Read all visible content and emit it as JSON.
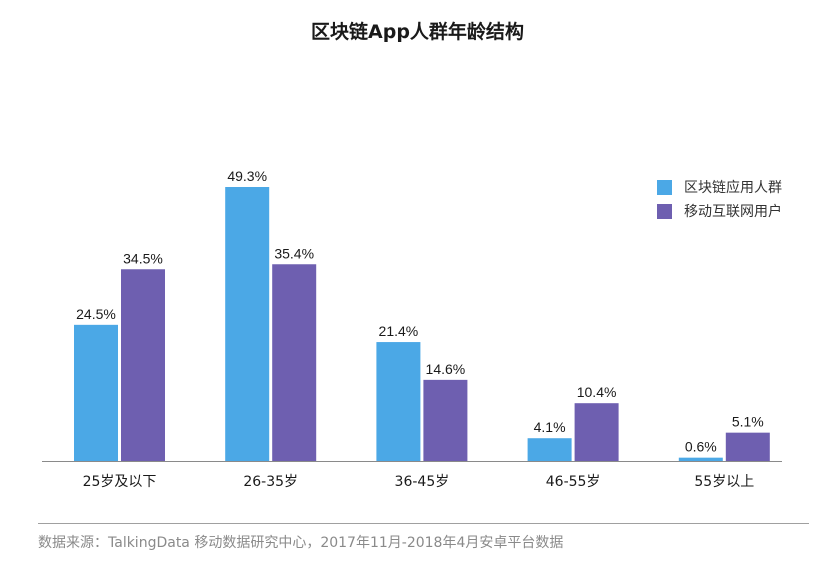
{
  "chart_data": {
    "type": "bar",
    "title": "区块链App人群年龄结构",
    "categories": [
      "25岁及以下",
      "26-35岁",
      "36-45岁",
      "46-55岁",
      "55岁以上"
    ],
    "series": [
      {
        "name": "区块链应用人群",
        "color": "#4ba8e6",
        "values": [
          24.5,
          49.3,
          21.4,
          4.1,
          0.6
        ],
        "labels": [
          "24.5%",
          "49.3%",
          "21.4%",
          "4.1%",
          "0.6%"
        ]
      },
      {
        "name": "移动互联网用户",
        "color": "#6e5fb0",
        "values": [
          34.5,
          35.4,
          14.6,
          10.4,
          5.1
        ],
        "labels": [
          "34.5%",
          "35.4%",
          "14.6%",
          "10.4%",
          "5.1%"
        ]
      }
    ],
    "xlabel": "",
    "ylabel": "",
    "ylim": [
      0,
      50
    ],
    "grid": false,
    "legend": "right",
    "unit": "%"
  },
  "source": "数据来源：TalkingData 移动数据研究中心，2017年11月-2018年4月安卓平台数据"
}
